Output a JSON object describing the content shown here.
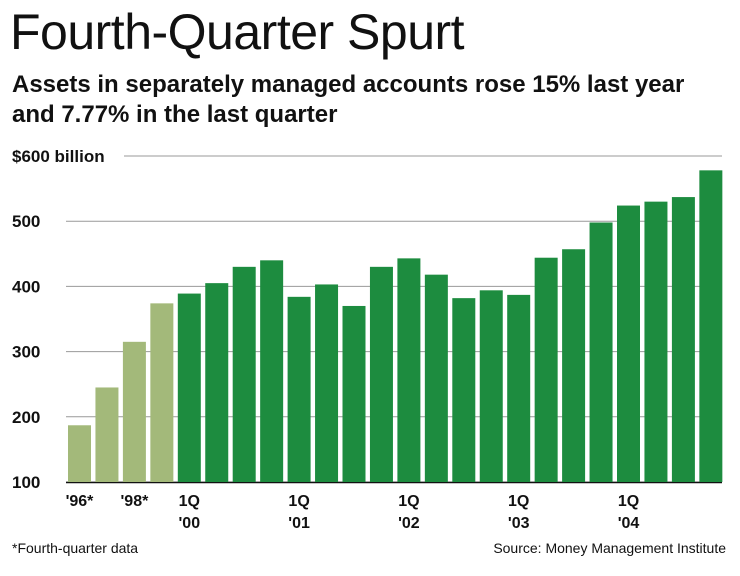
{
  "title": "Fourth-Quarter Spurt",
  "subtitle": "Assets in separately managed accounts rose 15% last year and 7.77% in the last quarter",
  "footnote": "*Fourth-quarter data",
  "source": "Source: Money Management Institute",
  "colors": {
    "annual": "#a3b97a",
    "quarterly": "#1d8c3f",
    "grid": "#999999"
  },
  "chart_data": {
    "type": "bar",
    "title": "Fourth-Quarter Spurt",
    "ylabel": "$600 billion",
    "ylim": [
      100,
      600
    ],
    "yticks": [
      100,
      200,
      300,
      400,
      500,
      600
    ],
    "ytick_labels": [
      "100",
      "200",
      "300",
      "400",
      "500",
      "$600 billion"
    ],
    "grid": true,
    "categories": [
      "'96*",
      "'97*",
      "'98*",
      "'99*",
      "1Q '00",
      "2Q '00",
      "3Q '00",
      "4Q '00",
      "1Q '01",
      "2Q '01",
      "3Q '01",
      "4Q '01",
      "1Q '02",
      "2Q '02",
      "3Q '02",
      "4Q '02",
      "1Q '03",
      "2Q '03",
      "3Q '03",
      "4Q '03",
      "1Q '04",
      "2Q '04",
      "3Q '04",
      "4Q '04"
    ],
    "values": [
      187,
      245,
      315,
      374,
      389,
      405,
      430,
      440,
      384,
      403,
      370,
      430,
      443,
      418,
      382,
      394,
      387,
      444,
      457,
      498,
      524,
      530,
      537,
      578
    ],
    "annual_count": 4,
    "x_labels": [
      {
        "index": 0,
        "lines": [
          "'96*"
        ]
      },
      {
        "index": 2,
        "lines": [
          "'98*"
        ]
      },
      {
        "index": 4,
        "lines": [
          "1Q",
          "'00"
        ]
      },
      {
        "index": 8,
        "lines": [
          "1Q",
          "'01"
        ]
      },
      {
        "index": 12,
        "lines": [
          "1Q",
          "'02"
        ]
      },
      {
        "index": 16,
        "lines": [
          "1Q",
          "'03"
        ]
      },
      {
        "index": 20,
        "lines": [
          "1Q",
          "'04"
        ]
      }
    ]
  }
}
